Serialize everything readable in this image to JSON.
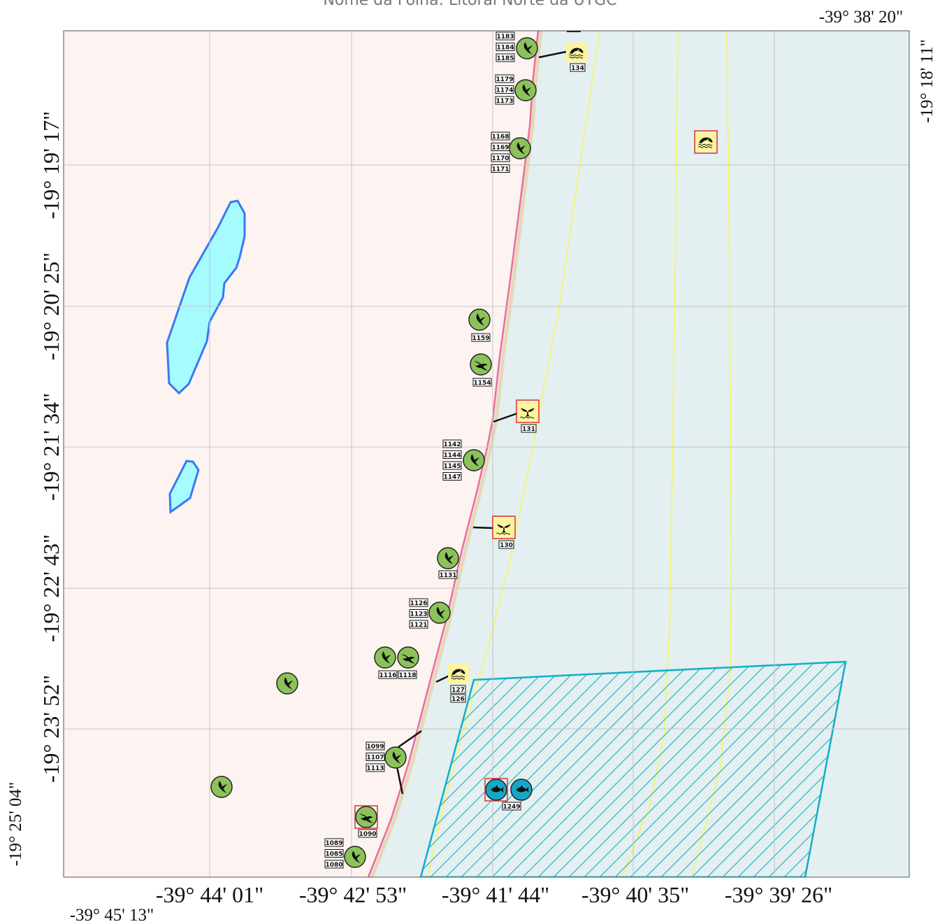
{
  "title": "Nome da Folha: Litoral Norte da UTGC",
  "corner_labels": {
    "top_right_lon": "-39° 38' 20\"",
    "right_lat": "-19° 18' 11\"",
    "bottom_left_lon": "-39° 45' 13\"",
    "left_bottom_lat": "-19° 25' 04\""
  },
  "lat_labels": [
    "-19° 19' 17\"",
    "-19° 20' 25\"",
    "-19° 21' 34\"",
    "-19° 22' 43\"",
    "-19° 23' 52\""
  ],
  "lon_labels": [
    "-39° 44' 01\"",
    "-39° 42' 53\"",
    "-39° 41' 44\"",
    "-39° 40' 35\"",
    "-39° 39' 26\""
  ],
  "colors": {
    "land": "#fdf3f1",
    "sea": "#e3eff0",
    "shoreline": "#f06a9a",
    "beach": "#e6d8b8",
    "isobath": "#f4f47a",
    "lagoon_fill": "#a6fbff",
    "lagoon_stroke": "#3a78f2",
    "area_stroke": "#12aec6",
    "bird_fill": "#8bc35a",
    "fish_fill": "#16a7c6",
    "mammal_fill": "#fbf59e",
    "highlight": "#e03030"
  },
  "markers": [
    {
      "id": "m1",
      "icon": "bird-icon",
      "labels": [
        "1183",
        "1184",
        "1185"
      ]
    },
    {
      "id": "m2",
      "icon": "dolphin-icon",
      "labels": [
        "134"
      ]
    },
    {
      "id": "m3",
      "icon": "bird-icon",
      "labels": [
        "1179",
        "1174",
        "1173"
      ]
    },
    {
      "id": "m4",
      "icon": "bird-icon",
      "labels": [
        "1168",
        "1169",
        "1170",
        "1171"
      ]
    },
    {
      "id": "m5",
      "icon": "dolphin-icon",
      "labels": []
    },
    {
      "id": "m6",
      "icon": "bird-icon",
      "labels": [
        "1159"
      ]
    },
    {
      "id": "m7",
      "icon": "swallow-icon",
      "labels": [
        "1154"
      ]
    },
    {
      "id": "m8",
      "icon": "whale-tail-icon",
      "labels": [
        "131"
      ]
    },
    {
      "id": "m9",
      "icon": "bird-icon",
      "labels": [
        "1142",
        "1144",
        "1145",
        "1147"
      ]
    },
    {
      "id": "m10",
      "icon": "whale-tail-icon",
      "labels": [
        "130"
      ]
    },
    {
      "id": "m11",
      "icon": "bird-icon",
      "labels": [
        "1131"
      ]
    },
    {
      "id": "m12",
      "icon": "bird-icon",
      "labels": [
        "1126",
        "1123",
        "1121"
      ]
    },
    {
      "id": "m13",
      "icon": "bird-icon",
      "labels": [
        "1116"
      ]
    },
    {
      "id": "m14",
      "icon": "swallow-icon",
      "labels": [
        "1118"
      ]
    },
    {
      "id": "m15",
      "icon": "dolphin-icon",
      "labels": [
        "127",
        "126"
      ]
    },
    {
      "id": "m16",
      "icon": "bird-icon",
      "labels": []
    },
    {
      "id": "m17",
      "icon": "bird-icon",
      "labels": [
        "1099",
        "1107",
        "1113"
      ]
    },
    {
      "id": "m18",
      "icon": "bird-icon",
      "labels": []
    },
    {
      "id": "m19",
      "icon": "fish-icon",
      "labels": []
    },
    {
      "id": "m20",
      "icon": "fish-icon",
      "labels": [
        "1249"
      ]
    },
    {
      "id": "m21",
      "icon": "swallow-icon",
      "labels": [
        "1090"
      ]
    },
    {
      "id": "m22",
      "icon": "bird-icon",
      "labels": [
        "1089",
        "1085",
        "1080"
      ]
    }
  ]
}
